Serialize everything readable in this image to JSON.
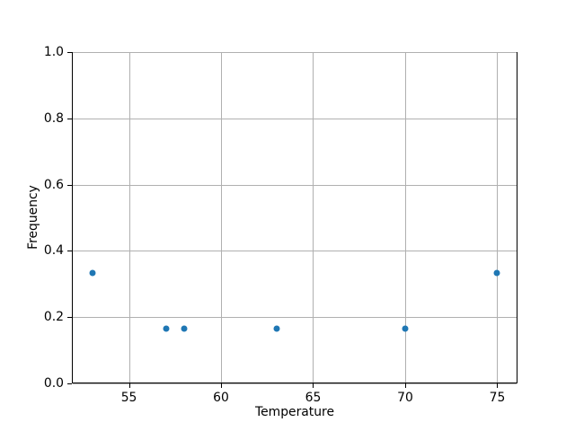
{
  "chart_data": {
    "type": "scatter",
    "x": [
      53,
      57,
      58,
      63,
      70,
      75
    ],
    "y": [
      0.333,
      0.165,
      0.165,
      0.165,
      0.165,
      0.333
    ],
    "xlabel": "Temperature",
    "ylabel": "Frequency",
    "xlim": [
      51.9,
      76.1
    ],
    "ylim": [
      0.0,
      1.0
    ],
    "x_tick_values": [
      55,
      60,
      65,
      70,
      75
    ],
    "x_tick_labels": [
      "55",
      "60",
      "65",
      "70",
      "75"
    ],
    "y_tick_values": [
      0.0,
      0.2,
      0.4,
      0.6,
      0.8,
      1.0
    ],
    "y_tick_labels": [
      "0.0",
      "0.2",
      "0.4",
      "0.6",
      "0.8",
      "1.0"
    ],
    "grid": true,
    "legend": false,
    "colors": {
      "marker": "#1f77b4",
      "grid": "#b0b0b0",
      "spine": "#000000",
      "text": "#000000",
      "background": "#ffffff"
    }
  }
}
